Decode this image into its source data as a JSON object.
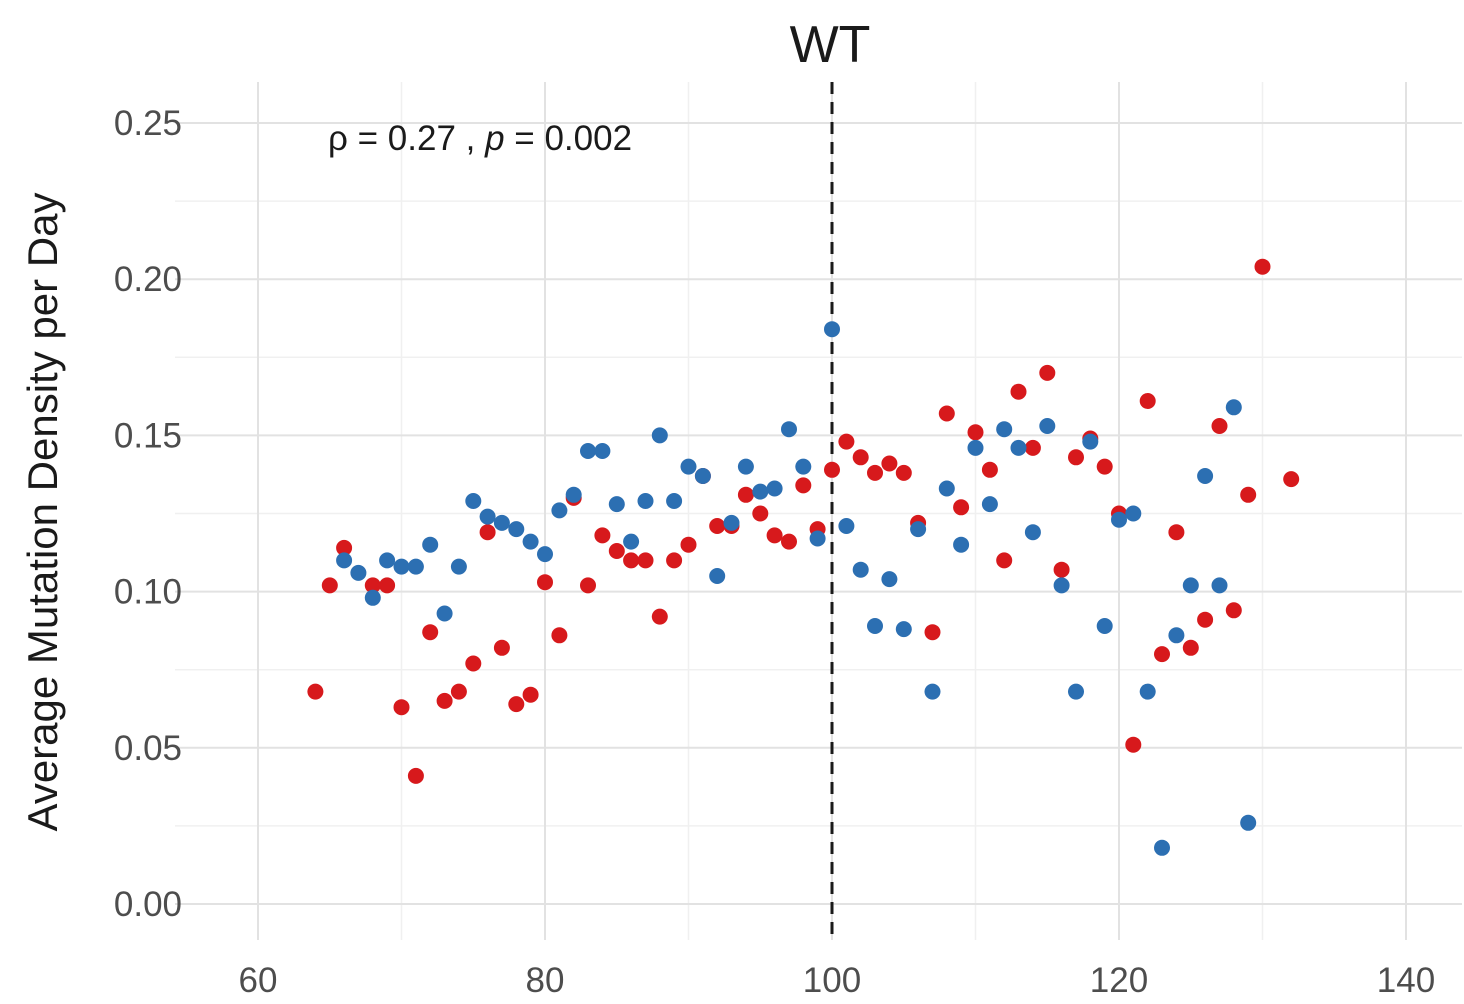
{
  "chart_data": {
    "type": "scatter",
    "title": "WT",
    "xlabel": "",
    "ylabel": "Average Mutation Density per Day",
    "xlim": [
      60,
      142
    ],
    "ylim": [
      0,
      0.25
    ],
    "x_ticks": [
      60,
      80,
      100,
      120,
      140
    ],
    "x_tick_labels": [
      "60",
      "80",
      "100",
      "120",
      "140"
    ],
    "y_ticks": [
      0,
      0.05,
      0.1,
      0.15,
      0.2,
      0.25
    ],
    "y_tick_labels": [
      "0.00",
      "0.05",
      "0.10",
      "0.15",
      "0.20",
      "0.25"
    ],
    "grid": true,
    "vertical_reference_line": {
      "x": 100,
      "style": "dashed",
      "color": "#1a1a1a"
    },
    "annotation": {
      "rho_text": "ρ = 0.27 , ",
      "p_symbol": "p",
      "p_text": " = 0.002"
    },
    "series": [
      {
        "color": "#d7191c",
        "points": [
          [
            64,
            0.068
          ],
          [
            65,
            0.102
          ],
          [
            66,
            0.114
          ],
          [
            68,
            0.102
          ],
          [
            69,
            0.102
          ],
          [
            70,
            0.063
          ],
          [
            71,
            0.041
          ],
          [
            72,
            0.087
          ],
          [
            73,
            0.065
          ],
          [
            74,
            0.068
          ],
          [
            75,
            0.077
          ],
          [
            76,
            0.119
          ],
          [
            77,
            0.082
          ],
          [
            78,
            0.064
          ],
          [
            79,
            0.067
          ],
          [
            80,
            0.103
          ],
          [
            81,
            0.086
          ],
          [
            82,
            0.13
          ],
          [
            83,
            0.102
          ],
          [
            84,
            0.118
          ],
          [
            85,
            0.113
          ],
          [
            86,
            0.11
          ],
          [
            87,
            0.11
          ],
          [
            88,
            0.092
          ],
          [
            89,
            0.11
          ],
          [
            90,
            0.115
          ],
          [
            91,
            0.137
          ],
          [
            92,
            0.121
          ],
          [
            93,
            0.121
          ],
          [
            94,
            0.131
          ],
          [
            95,
            0.125
          ],
          [
            96,
            0.118
          ],
          [
            97,
            0.116
          ],
          [
            98,
            0.134
          ],
          [
            99,
            0.12
          ],
          [
            100,
            0.139
          ],
          [
            101,
            0.148
          ],
          [
            102,
            0.143
          ],
          [
            103,
            0.138
          ],
          [
            104,
            0.141
          ],
          [
            105,
            0.138
          ],
          [
            106,
            0.122
          ],
          [
            107,
            0.087
          ],
          [
            108,
            0.157
          ],
          [
            109,
            0.127
          ],
          [
            110,
            0.151
          ],
          [
            111,
            0.139
          ],
          [
            112,
            0.11
          ],
          [
            113,
            0.164
          ],
          [
            114,
            0.146
          ],
          [
            115,
            0.17
          ],
          [
            116,
            0.107
          ],
          [
            117,
            0.143
          ],
          [
            118,
            0.149
          ],
          [
            119,
            0.14
          ],
          [
            120,
            0.125
          ],
          [
            121,
            0.051
          ],
          [
            122,
            0.161
          ],
          [
            123,
            0.08
          ],
          [
            124,
            0.119
          ],
          [
            125,
            0.082
          ],
          [
            126,
            0.091
          ],
          [
            127,
            0.153
          ],
          [
            128,
            0.094
          ],
          [
            129,
            0.131
          ],
          [
            130,
            0.204
          ],
          [
            132,
            0.136
          ]
        ]
      },
      {
        "color": "#2c6fb2",
        "points": [
          [
            66,
            0.11
          ],
          [
            67,
            0.106
          ],
          [
            68,
            0.098
          ],
          [
            69,
            0.11
          ],
          [
            70,
            0.108
          ],
          [
            71,
            0.108
          ],
          [
            72,
            0.115
          ],
          [
            73,
            0.093
          ],
          [
            74,
            0.108
          ],
          [
            75,
            0.129
          ],
          [
            76,
            0.124
          ],
          [
            77,
            0.122
          ],
          [
            78,
            0.12
          ],
          [
            79,
            0.116
          ],
          [
            80,
            0.112
          ],
          [
            81,
            0.126
          ],
          [
            82,
            0.131
          ],
          [
            83,
            0.145
          ],
          [
            84,
            0.145
          ],
          [
            85,
            0.128
          ],
          [
            86,
            0.116
          ],
          [
            87,
            0.129
          ],
          [
            88,
            0.15
          ],
          [
            89,
            0.129
          ],
          [
            90,
            0.14
          ],
          [
            91,
            0.137
          ],
          [
            92,
            0.105
          ],
          [
            93,
            0.122
          ],
          [
            94,
            0.14
          ],
          [
            95,
            0.132
          ],
          [
            96,
            0.133
          ],
          [
            97,
            0.152
          ],
          [
            98,
            0.14
          ],
          [
            99,
            0.117
          ],
          [
            100,
            0.184
          ],
          [
            101,
            0.121
          ],
          [
            102,
            0.107
          ],
          [
            103,
            0.089
          ],
          [
            104,
            0.104
          ],
          [
            105,
            0.088
          ],
          [
            106,
            0.12
          ],
          [
            107,
            0.068
          ],
          [
            108,
            0.133
          ],
          [
            109,
            0.115
          ],
          [
            110,
            0.146
          ],
          [
            111,
            0.128
          ],
          [
            112,
            0.152
          ],
          [
            113,
            0.146
          ],
          [
            114,
            0.119
          ],
          [
            115,
            0.153
          ],
          [
            116,
            0.102
          ],
          [
            117,
            0.068
          ],
          [
            118,
            0.148
          ],
          [
            119,
            0.089
          ],
          [
            120,
            0.123
          ],
          [
            121,
            0.125
          ],
          [
            122,
            0.068
          ],
          [
            123,
            0.018
          ],
          [
            124,
            0.086
          ],
          [
            125,
            0.102
          ],
          [
            126,
            0.137
          ],
          [
            127,
            0.102
          ],
          [
            128,
            0.159
          ],
          [
            129,
            0.026
          ]
        ]
      }
    ]
  }
}
